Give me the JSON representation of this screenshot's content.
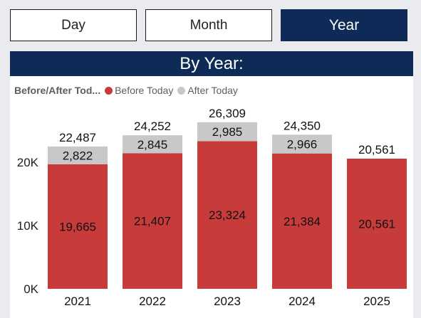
{
  "tabs": [
    {
      "id": "day",
      "label": "Day",
      "active": false
    },
    {
      "id": "month",
      "label": "Month",
      "active": false
    },
    {
      "id": "year",
      "label": "Year",
      "active": true
    }
  ],
  "panel": {
    "title": "By Year:"
  },
  "legend": {
    "title": "Before/After Tod...",
    "items": [
      {
        "label": "Before Today",
        "color": "#c83b3b"
      },
      {
        "label": "After Today",
        "color": "#c8c8c8"
      }
    ]
  },
  "chart_data": {
    "type": "bar",
    "stacked": true,
    "categories": [
      "2021",
      "2022",
      "2023",
      "2024",
      "2025"
    ],
    "series": [
      {
        "name": "Before Today",
        "color": "#c83b3b",
        "values": [
          19665,
          21407,
          23324,
          21384,
          20561
        ],
        "labels": [
          "19,665",
          "21,407",
          "23,324",
          "21,384",
          "20,561"
        ]
      },
      {
        "name": "After Today",
        "color": "#c8c8c8",
        "values": [
          2822,
          2845,
          2985,
          2966,
          0
        ],
        "labels": [
          "2,822",
          "2,845",
          "2,985",
          "2,966",
          ""
        ]
      }
    ],
    "totals": [
      22487,
      24252,
      26309,
      24350,
      20561
    ],
    "total_labels": [
      "22,487",
      "24,252",
      "26,309",
      "24,350",
      "20,561"
    ],
    "yticks": [
      0,
      10000,
      20000
    ],
    "ytick_labels": [
      "0K",
      "10K",
      "20K"
    ],
    "ylim": [
      0,
      28000
    ],
    "grid": false
  }
}
